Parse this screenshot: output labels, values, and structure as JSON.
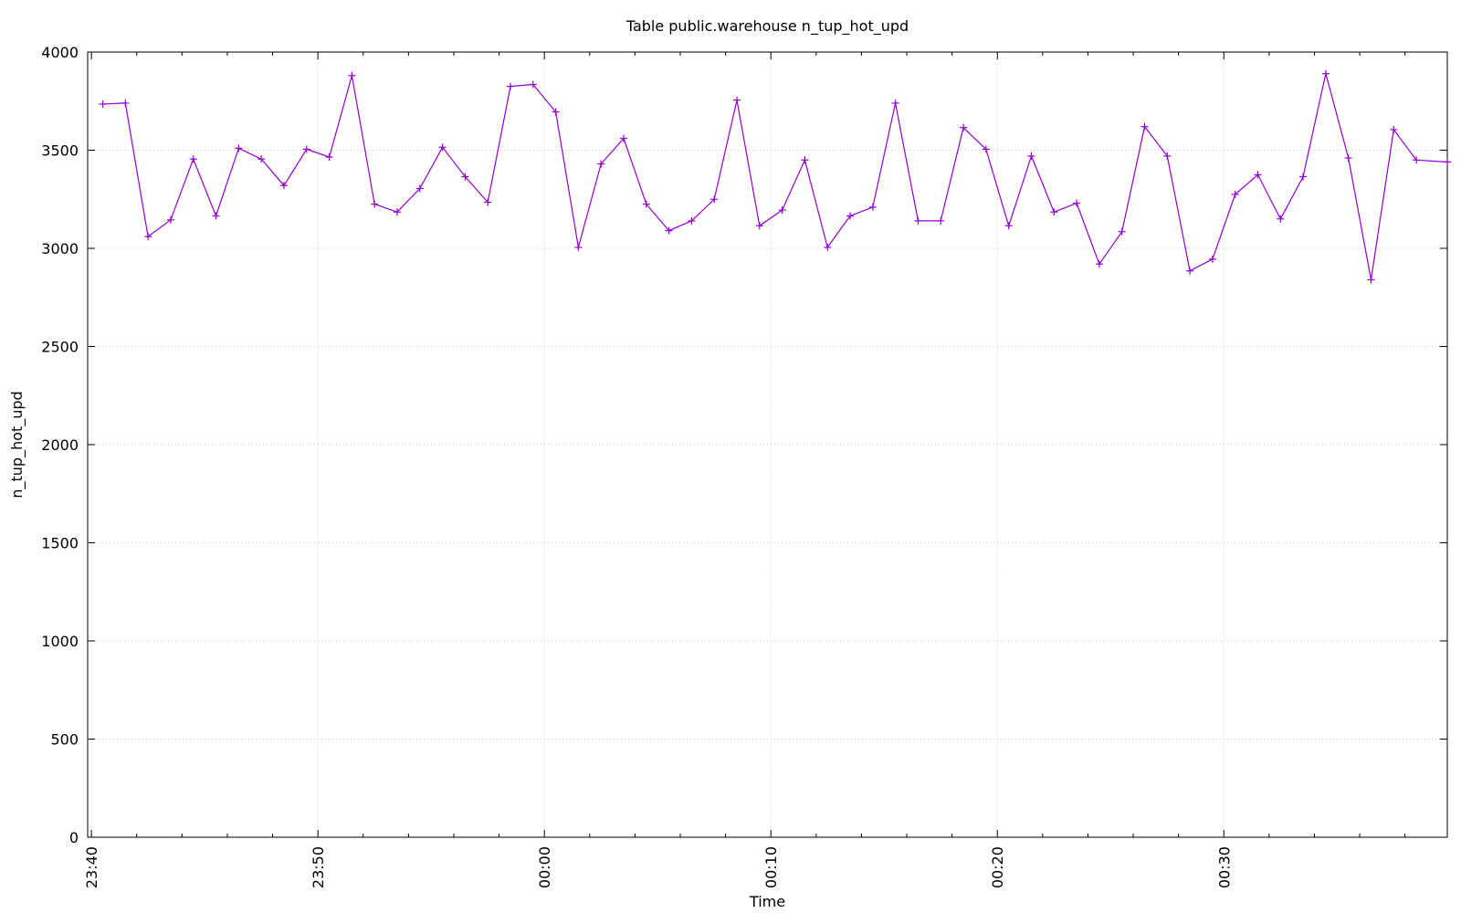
{
  "chart_data": {
    "type": "line",
    "title": "Table public.warehouse n_tup_hot_upd",
    "xlabel": "Time",
    "ylabel": "n_tup_hot_upd",
    "ylim": [
      0,
      4000
    ],
    "yticks": [
      0,
      500,
      1000,
      1500,
      2000,
      2500,
      3000,
      3500,
      4000
    ],
    "xlim": [
      "23:39:50",
      "00:39:52"
    ],
    "xticks": [
      "23:40",
      "23:50",
      "00:00",
      "00:10",
      "00:20",
      "00:30"
    ],
    "grid": true,
    "legend": "none",
    "series": [
      {
        "color": "#9400d3",
        "marker": "plus",
        "x": [
          "23:40:30",
          "23:41:30",
          "23:42:30",
          "23:43:30",
          "23:44:30",
          "23:45:30",
          "23:46:30",
          "23:47:30",
          "23:48:30",
          "23:49:30",
          "23:50:30",
          "23:51:30",
          "23:52:30",
          "23:53:30",
          "23:54:30",
          "23:55:30",
          "23:56:30",
          "23:57:30",
          "23:58:30",
          "23:59:30",
          "00:00:30",
          "00:01:30",
          "00:02:30",
          "00:03:30",
          "00:04:30",
          "00:05:30",
          "00:06:30",
          "00:07:30",
          "00:08:30",
          "00:09:30",
          "00:10:30",
          "00:11:30",
          "00:12:30",
          "00:13:30",
          "00:14:30",
          "00:15:30",
          "00:16:30",
          "00:17:30",
          "00:18:30",
          "00:19:30",
          "00:20:30",
          "00:21:30",
          "00:22:30",
          "00:23:30",
          "00:24:30",
          "00:25:30",
          "00:26:30",
          "00:27:30",
          "00:28:30",
          "00:29:30",
          "00:30:30",
          "00:31:30",
          "00:32:30",
          "00:33:30",
          "00:34:30",
          "00:35:30",
          "00:36:30",
          "00:37:30",
          "00:38:30",
          "00:39:52"
        ],
        "y": [
          3735,
          3740,
          3060,
          3145,
          3455,
          3165,
          3510,
          3455,
          3320,
          3505,
          3465,
          3880,
          3225,
          3185,
          3305,
          3515,
          3365,
          3235,
          3825,
          3835,
          3695,
          3005,
          3430,
          3560,
          3225,
          3090,
          3140,
          3250,
          3755,
          3115,
          3195,
          3450,
          3005,
          3165,
          3210,
          3740,
          3140,
          3140,
          3615,
          3505,
          3115,
          3470,
          3185,
          3230,
          2920,
          3085,
          3620,
          3470,
          2885,
          2945,
          3275,
          3375,
          3150,
          3365,
          3890,
          3460,
          2840,
          3605,
          3450,
          3440
        ]
      }
    ]
  }
}
